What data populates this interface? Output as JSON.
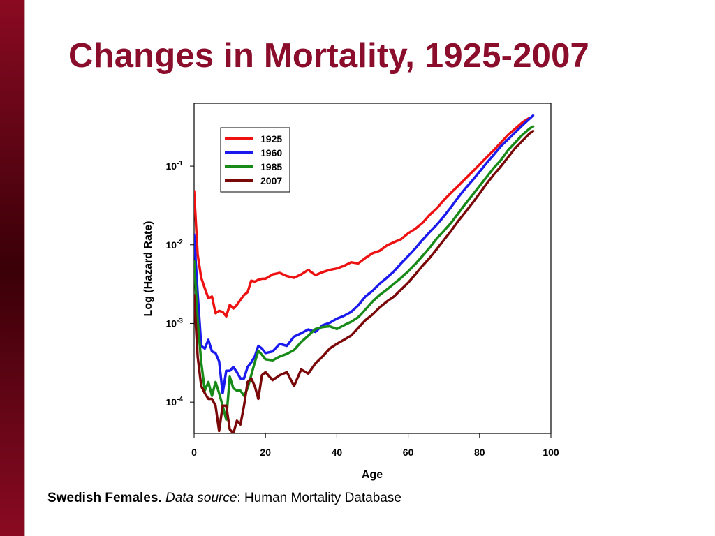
{
  "title": "Changes in Mortality, 1925-2007",
  "caption": {
    "bold": "Swedish Females.",
    "italic": "Data source",
    "rest": ": Human Mortality Database"
  },
  "colors": {
    "title": "#8b0d2c",
    "sidebar": "#6a0018"
  },
  "chart_data": {
    "type": "line",
    "title": "",
    "xlabel": "Age",
    "ylabel": "Log (Hazard Rate)",
    "xlim": [
      0,
      100
    ],
    "ylim": [
      4e-05,
      0.63
    ],
    "yscale": "log",
    "xticks": [
      "0",
      "20",
      "40",
      "60",
      "80",
      "100"
    ],
    "yticks": [
      "10^-1",
      "10^-2",
      "10^-3",
      "10^-4"
    ],
    "legend_position": "top-left",
    "grid": false,
    "series": [
      {
        "name": "1925",
        "color": "#ee1111",
        "x": [
          0,
          1,
          2,
          3,
          4,
          5,
          6,
          7,
          8,
          9,
          10,
          11,
          12,
          13,
          14,
          15,
          16,
          17,
          18,
          19,
          20,
          22,
          24,
          26,
          28,
          30,
          32,
          34,
          36,
          38,
          40,
          42,
          44,
          46,
          48,
          50,
          52,
          54,
          56,
          58,
          60,
          62,
          64,
          66,
          68,
          70,
          72,
          74,
          76,
          78,
          80,
          82,
          84,
          86,
          88,
          90,
          92,
          94
        ],
        "y": [
          0.048,
          0.0075,
          0.0038,
          0.0028,
          0.0021,
          0.0022,
          0.00135,
          0.00145,
          0.0014,
          0.00123,
          0.00172,
          0.00155,
          0.00172,
          0.002,
          0.0023,
          0.0025,
          0.0035,
          0.0034,
          0.0036,
          0.0037,
          0.0037,
          0.0042,
          0.0044,
          0.004,
          0.0038,
          0.0042,
          0.0048,
          0.0041,
          0.0045,
          0.0048,
          0.005,
          0.0054,
          0.006,
          0.0058,
          0.0068,
          0.0078,
          0.0084,
          0.0098,
          0.0108,
          0.0118,
          0.014,
          0.016,
          0.019,
          0.024,
          0.029,
          0.037,
          0.046,
          0.056,
          0.069,
          0.085,
          0.105,
          0.13,
          0.16,
          0.2,
          0.25,
          0.3,
          0.36,
          0.41
        ]
      },
      {
        "name": "1960",
        "color": "#1a1aee",
        "x": [
          0,
          1,
          2,
          3,
          4,
          5,
          6,
          7,
          8,
          9,
          10,
          11,
          12,
          13,
          14,
          15,
          16,
          17,
          18,
          19,
          20,
          22,
          24,
          26,
          28,
          30,
          32,
          34,
          36,
          38,
          40,
          42,
          44,
          46,
          48,
          50,
          52,
          54,
          56,
          58,
          60,
          62,
          64,
          66,
          68,
          70,
          72,
          74,
          76,
          78,
          80,
          82,
          84,
          86,
          88,
          90,
          92,
          94,
          95
        ],
        "y": [
          0.0135,
          0.0024,
          0.00052,
          0.00048,
          0.00062,
          0.00044,
          0.00042,
          0.00033,
          0.00013,
          0.00025,
          0.00025,
          0.00028,
          0.00024,
          0.0002,
          0.0002,
          0.00028,
          0.00032,
          0.00038,
          0.00052,
          0.00048,
          0.00042,
          0.00044,
          0.00055,
          0.00052,
          0.00068,
          0.00075,
          0.00084,
          0.00078,
          0.00095,
          0.00102,
          0.00115,
          0.00125,
          0.0014,
          0.0017,
          0.0022,
          0.0026,
          0.0032,
          0.0038,
          0.0046,
          0.0058,
          0.0072,
          0.009,
          0.0115,
          0.0145,
          0.018,
          0.023,
          0.03,
          0.04,
          0.052,
          0.066,
          0.085,
          0.11,
          0.14,
          0.18,
          0.22,
          0.27,
          0.33,
          0.4,
          0.44
        ]
      },
      {
        "name": "1985",
        "color": "#178a17",
        "x": [
          0,
          1,
          2,
          3,
          4,
          5,
          6,
          7,
          8,
          9,
          10,
          11,
          12,
          13,
          14,
          15,
          16,
          17,
          18,
          19,
          20,
          22,
          24,
          26,
          28,
          30,
          32,
          34,
          36,
          38,
          40,
          42,
          44,
          46,
          48,
          50,
          52,
          54,
          56,
          58,
          60,
          62,
          64,
          66,
          68,
          70,
          72,
          74,
          76,
          78,
          80,
          82,
          84,
          86,
          88,
          90,
          92,
          94,
          95
        ],
        "y": [
          0.0062,
          0.0011,
          0.00032,
          0.00014,
          0.00018,
          0.00012,
          0.00018,
          0.00013,
          9e-05,
          6e-05,
          0.00021,
          0.00015,
          0.00014,
          0.00014,
          0.00012,
          0.00015,
          0.00022,
          0.00032,
          0.00045,
          0.0004,
          0.00035,
          0.00034,
          0.00038,
          0.00041,
          0.00046,
          0.00058,
          0.0007,
          0.00085,
          0.0009,
          0.00092,
          0.00085,
          0.00095,
          0.00105,
          0.0012,
          0.0015,
          0.0019,
          0.0023,
          0.0027,
          0.0032,
          0.0038,
          0.0046,
          0.0057,
          0.0072,
          0.0092,
          0.012,
          0.015,
          0.019,
          0.025,
          0.033,
          0.043,
          0.056,
          0.073,
          0.095,
          0.12,
          0.16,
          0.2,
          0.25,
          0.3,
          0.32
        ]
      },
      {
        "name": "2007",
        "color": "#7a0808",
        "x": [
          0,
          1,
          2,
          3,
          4,
          5,
          6,
          7,
          8,
          9,
          10,
          11,
          12,
          13,
          14,
          15,
          16,
          17,
          18,
          19,
          20,
          22,
          24,
          26,
          28,
          30,
          32,
          34,
          36,
          38,
          40,
          42,
          44,
          46,
          48,
          50,
          52,
          54,
          56,
          58,
          60,
          62,
          64,
          66,
          68,
          70,
          72,
          74,
          76,
          78,
          80,
          82,
          84,
          86,
          88,
          90,
          92,
          94,
          95
        ],
        "y": [
          0.0023,
          0.00038,
          0.00016,
          0.00013,
          0.00011,
          0.00011,
          9e-05,
          4.3e-05,
          9e-05,
          9e-05,
          4.5e-05,
          4e-05,
          5.8e-05,
          5.2e-05,
          9e-05,
          0.00018,
          0.0002,
          0.00016,
          0.00011,
          0.00022,
          0.00024,
          0.00019,
          0.00022,
          0.00024,
          0.00016,
          0.00026,
          0.00023,
          0.00031,
          0.00038,
          0.00048,
          0.00055,
          0.00062,
          0.0007,
          0.00088,
          0.0011,
          0.0013,
          0.0016,
          0.0019,
          0.0022,
          0.0027,
          0.0033,
          0.0042,
          0.0054,
          0.0068,
          0.0088,
          0.0115,
          0.015,
          0.02,
          0.026,
          0.034,
          0.045,
          0.06,
          0.078,
          0.1,
          0.13,
          0.17,
          0.21,
          0.26,
          0.28
        ]
      }
    ]
  }
}
